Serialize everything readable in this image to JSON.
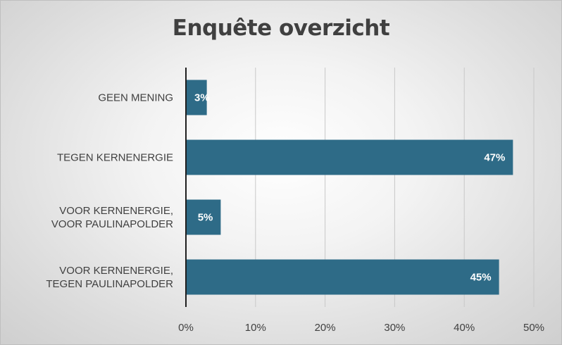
{
  "chart_data": {
    "type": "bar",
    "orientation": "horizontal",
    "title": "Enquête overzicht",
    "categories": [
      "GEEN MENING",
      "TEGEN KERNENERGIE",
      "VOOR KERNENERGIE, VOOR PAULINAPOLDER",
      "VOOR KERNENERGIE, TEGEN PAULINAPOLDER"
    ],
    "values": [
      3,
      47,
      5,
      45
    ],
    "data_labels": [
      "3%",
      "47%",
      "5%",
      "45%"
    ],
    "xlim": [
      0,
      50
    ],
    "x_ticks": [
      0,
      10,
      20,
      30,
      40,
      50
    ],
    "x_tick_labels": [
      "0%",
      "10%",
      "20%",
      "30%",
      "40%",
      "50%"
    ],
    "xlabel": "",
    "ylabel": "",
    "grid": "vertical",
    "legend": "none",
    "colors": {
      "bar": "#2e6b87",
      "grid": "#c8c8c8",
      "axis": "#1f1f1f",
      "text": "#404040",
      "title": "#404040"
    }
  }
}
